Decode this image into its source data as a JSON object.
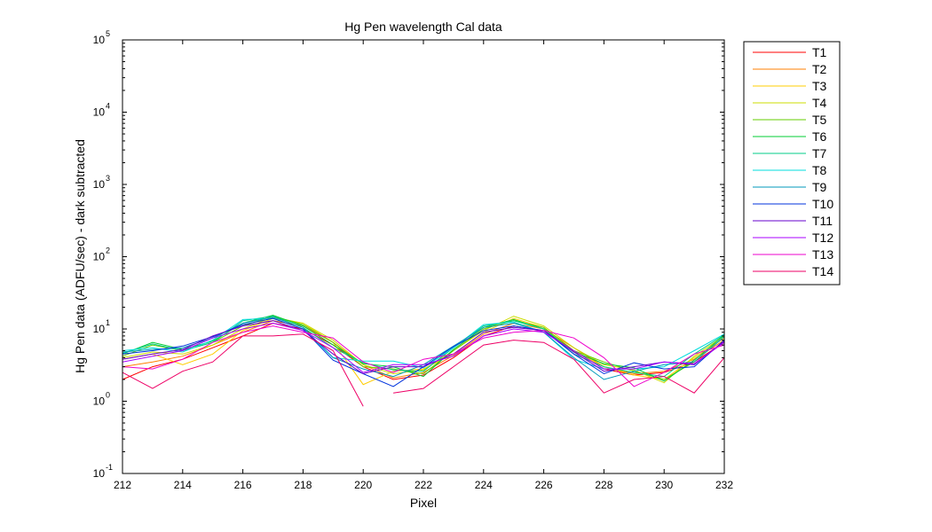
{
  "chart_data": {
    "type": "line",
    "title": "Hg Pen wavelength Cal data",
    "xlabel": "Pixel",
    "ylabel": "Hg Pen data (ADFU/sec) - dark subtracted",
    "xlim": [
      212,
      232
    ],
    "ylim": [
      0.1,
      100000
    ],
    "yscale": "log",
    "grid": false,
    "legend_position": "outside-right",
    "x_ticks": [
      "212",
      "214",
      "216",
      "218",
      "220",
      "222",
      "224",
      "226",
      "228",
      "230",
      "232"
    ],
    "y_ticks": [
      {
        "base": "10",
        "exp": "-1"
      },
      {
        "base": "10",
        "exp": "0"
      },
      {
        "base": "10",
        "exp": "1"
      },
      {
        "base": "10",
        "exp": "2"
      },
      {
        "base": "10",
        "exp": "3"
      },
      {
        "base": "10",
        "exp": "4"
      },
      {
        "base": "10",
        "exp": "5"
      }
    ],
    "x": [
      212,
      213,
      214,
      215,
      216,
      217,
      218,
      219,
      220,
      221,
      222,
      223,
      224,
      225,
      226,
      227,
      228,
      229,
      230,
      231,
      232
    ],
    "series": [
      {
        "name": "T1",
        "color": "#ff0000",
        "values": [
          2.0,
          3.0,
          3.8,
          5.5,
          8.0,
          12.0,
          10.0,
          6.0,
          3.0,
          2.0,
          2.3,
          4.0,
          8.0,
          11.0,
          9.5,
          5.0,
          2.8,
          2.3,
          2.5,
          3.5,
          6.5
        ]
      },
      {
        "name": "T2",
        "color": "#ff7f00",
        "values": [
          3.0,
          3.5,
          4.2,
          6.0,
          9.0,
          13.0,
          11.0,
          6.5,
          3.2,
          2.1,
          2.5,
          4.3,
          8.5,
          12.0,
          10.0,
          5.5,
          3.0,
          2.4,
          2.6,
          3.8,
          7.0
        ]
      },
      {
        "name": "T3",
        "color": "#ffcc00",
        "values": [
          3.8,
          4.5,
          3.2,
          4.5,
          9.5,
          14.0,
          12.0,
          6.5,
          1.7,
          2.6,
          2.8,
          4.5,
          9.0,
          14.0,
          10.5,
          5.0,
          3.0,
          2.3,
          2.0,
          4.0,
          7.5
        ]
      },
      {
        "name": "T4",
        "color": "#ccdd00",
        "values": [
          4.0,
          4.8,
          4.5,
          6.0,
          10.0,
          14.5,
          12.0,
          7.0,
          3.2,
          2.4,
          2.7,
          5.0,
          9.5,
          15.0,
          11.0,
          5.5,
          3.2,
          2.7,
          1.8,
          4.2,
          8.0
        ]
      },
      {
        "name": "T5",
        "color": "#66cc00",
        "values": [
          4.2,
          6.0,
          5.0,
          6.5,
          11.0,
          15.0,
          11.5,
          6.5,
          3.0,
          2.8,
          2.4,
          5.0,
          10.0,
          13.0,
          10.5,
          5.0,
          3.5,
          2.6,
          2.0,
          3.5,
          7.8
        ]
      },
      {
        "name": "T6",
        "color": "#00cc33",
        "values": [
          4.5,
          6.5,
          5.2,
          6.8,
          12.0,
          15.5,
          11.0,
          6.0,
          3.3,
          3.0,
          2.2,
          5.2,
          10.5,
          13.5,
          10.0,
          4.8,
          3.3,
          2.9,
          1.9,
          3.7,
          8.2
        ]
      },
      {
        "name": "T7",
        "color": "#00cc88",
        "values": [
          4.6,
          6.2,
          5.0,
          6.5,
          13.0,
          15.0,
          10.5,
          5.5,
          3.4,
          2.7,
          2.6,
          5.5,
          11.0,
          13.0,
          10.0,
          4.5,
          3.0,
          2.5,
          2.2,
          4.5,
          8.3
        ]
      },
      {
        "name": "T8",
        "color": "#00dddd",
        "values": [
          5.0,
          5.5,
          4.8,
          7.0,
          13.5,
          14.0,
          10.0,
          4.0,
          3.6,
          3.6,
          2.9,
          5.5,
          11.5,
          12.5,
          9.0,
          3.8,
          2.8,
          2.8,
          3.0,
          5.0,
          8.5
        ]
      },
      {
        "name": "T9",
        "color": "#0099bb",
        "values": [
          4.8,
          5.2,
          5.5,
          7.5,
          12.0,
          14.5,
          10.5,
          4.0,
          2.8,
          2.2,
          3.2,
          5.8,
          10.5,
          12.0,
          9.0,
          4.0,
          2.0,
          2.6,
          3.2,
          3.5,
          7.8
        ]
      },
      {
        "name": "T10",
        "color": "#0033dd",
        "values": [
          4.5,
          5.0,
          5.8,
          7.8,
          11.5,
          14.0,
          10.0,
          3.7,
          2.4,
          1.6,
          3.0,
          5.7,
          9.5,
          11.0,
          9.5,
          4.5,
          2.4,
          3.4,
          2.8,
          3.0,
          7.0
        ]
      },
      {
        "name": "T11",
        "color": "#6600cc",
        "values": [
          3.8,
          4.5,
          5.2,
          8.0,
          11.0,
          13.0,
          9.5,
          4.5,
          2.4,
          3.0,
          3.0,
          4.5,
          9.0,
          10.5,
          9.5,
          4.8,
          2.6,
          3.0,
          3.5,
          3.2,
          6.8
        ]
      },
      {
        "name": "T12",
        "color": "#aa00ff",
        "values": [
          3.5,
          4.2,
          5.0,
          7.5,
          10.0,
          12.0,
          9.5,
          5.5,
          2.5,
          3.2,
          3.2,
          4.2,
          8.0,
          10.0,
          9.0,
          5.0,
          2.8,
          2.8,
          3.5,
          3.3,
          6.5
        ]
      },
      {
        "name": "T13",
        "color": "#ee00cc",
        "values": [
          3.0,
          2.8,
          3.8,
          6.5,
          9.0,
          11.0,
          9.0,
          7.5,
          3.5,
          2.5,
          3.8,
          4.5,
          7.5,
          9.0,
          9.5,
          7.5,
          4.0,
          1.6,
          2.5,
          4.5,
          6.0
        ]
      },
      {
        "name": "T14",
        "color": "#ee0066",
        "values": [
          2.5,
          1.5,
          2.6,
          3.5,
          8.0,
          8.0,
          8.5,
          5.0,
          0.85,
          null,
          null,
          null,
          null,
          null,
          null,
          null,
          null,
          null,
          null,
          null,
          null
        ]
      },
      {
        "name": "",
        "color": "#ee0066",
        "values": [
          null,
          null,
          null,
          null,
          null,
          null,
          null,
          null,
          null,
          1.3,
          1.5,
          3.0,
          6.0,
          7.0,
          6.5,
          3.8,
          1.3,
          2.0,
          2.2,
          1.3,
          4.0
        ]
      }
    ]
  }
}
